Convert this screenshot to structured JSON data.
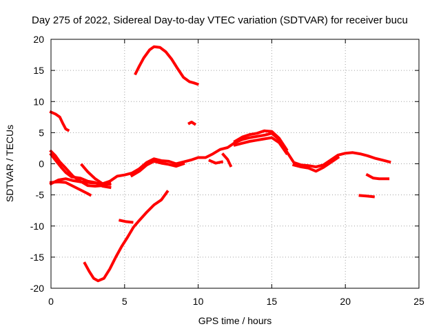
{
  "chart_data": {
    "type": "scatter",
    "title": "Day 275 of 2022, Sidereal Day-to-day VTEC variation (SDTVAR) for receiver bucu",
    "xlabel": "GPS time / hours",
    "ylabel": "SDTVAR / TECUs",
    "xlim": [
      0,
      25
    ],
    "ylim": [
      -20,
      20
    ],
    "xticks": [
      0,
      5,
      10,
      15,
      20,
      25
    ],
    "yticks": [
      -20,
      -15,
      -10,
      -5,
      0,
      5,
      10,
      15,
      20
    ],
    "grid": true,
    "legend": "none",
    "color": "#ff0000",
    "series": [
      {
        "name": "main-band",
        "points": [
          [
            0.0,
            -3.2
          ],
          [
            0.5,
            -2.6
          ],
          [
            1.0,
            -2.4
          ],
          [
            1.5,
            -2.7
          ],
          [
            2.0,
            -2.9
          ],
          [
            2.5,
            -3.0
          ],
          [
            3.0,
            -3.1
          ],
          [
            3.5,
            -3.2
          ],
          [
            4.0,
            -2.8
          ],
          [
            4.5,
            -2.0
          ],
          [
            5.0,
            -1.8
          ],
          [
            5.5,
            -1.5
          ],
          [
            6.0,
            -0.8
          ],
          [
            6.5,
            0.2
          ],
          [
            7.0,
            0.8
          ],
          [
            7.5,
            0.5
          ],
          [
            8.0,
            0.4
          ],
          [
            8.5,
            0.0
          ],
          [
            9.0,
            0.3
          ],
          [
            9.5,
            0.6
          ],
          [
            10.0,
            1.0
          ],
          [
            10.5,
            1.0
          ],
          [
            11.0,
            1.6
          ],
          [
            11.5,
            2.3
          ],
          [
            12.0,
            2.6
          ],
          [
            12.5,
            3.4
          ],
          [
            13.0,
            3.9
          ],
          [
            13.5,
            4.2
          ],
          [
            14.0,
            4.4
          ],
          [
            14.5,
            4.6
          ],
          [
            15.0,
            4.9
          ],
          [
            15.5,
            3.9
          ],
          [
            16.0,
            2.0
          ],
          [
            16.5,
            0.2
          ],
          [
            17.0,
            -0.2
          ],
          [
            17.5,
            -0.3
          ],
          [
            18.0,
            -0.5
          ],
          [
            18.5,
            -0.2
          ],
          [
            19.0,
            0.6
          ],
          [
            19.5,
            1.4
          ],
          [
            20.0,
            1.7
          ],
          [
            20.5,
            1.8
          ],
          [
            21.0,
            1.6
          ],
          [
            21.5,
            1.3
          ],
          [
            22.0,
            0.9
          ],
          [
            22.5,
            0.6
          ],
          [
            23.0,
            0.3
          ]
        ]
      },
      {
        "name": "band-upper",
        "points": [
          [
            12.5,
            3.6
          ],
          [
            13.0,
            4.3
          ],
          [
            13.5,
            4.7
          ],
          [
            14.0,
            4.9
          ],
          [
            14.5,
            5.3
          ],
          [
            15.0,
            5.2
          ],
          [
            15.5,
            4.1
          ],
          [
            16.0,
            2.3
          ]
        ]
      },
      {
        "name": "band-lower",
        "points": [
          [
            5.5,
            -1.9
          ],
          [
            6.0,
            -1.2
          ],
          [
            6.5,
            -0.2
          ],
          [
            7.0,
            0.4
          ],
          [
            7.5,
            0.1
          ],
          [
            8.0,
            -0.1
          ],
          [
            8.5,
            -0.4
          ],
          [
            9.0,
            0.0
          ]
        ]
      },
      {
        "name": "band-low-2",
        "points": [
          [
            12.5,
            3.0
          ],
          [
            13.0,
            3.3
          ],
          [
            13.5,
            3.6
          ],
          [
            14.0,
            3.8
          ],
          [
            14.5,
            4.0
          ],
          [
            15.0,
            4.2
          ],
          [
            15.5,
            3.4
          ],
          [
            16.0,
            1.7
          ]
        ]
      },
      {
        "name": "band-low-3",
        "points": [
          [
            16.5,
            -0.2
          ],
          [
            17.0,
            -0.5
          ],
          [
            17.5,
            -0.7
          ],
          [
            18.0,
            -1.2
          ],
          [
            18.5,
            -0.6
          ],
          [
            19.0,
            0.2
          ],
          [
            19.5,
            1.0
          ]
        ]
      },
      {
        "name": "branch-0",
        "points": [
          [
            0.0,
            2.0
          ],
          [
            0.3,
            1.3
          ],
          [
            0.6,
            0.3
          ],
          [
            1.0,
            -0.7
          ],
          [
            1.5,
            -2.0
          ],
          [
            2.0,
            -2.8
          ],
          [
            2.5,
            -3.5
          ],
          [
            3.0,
            -3.6
          ],
          [
            3.5,
            -3.5
          ],
          [
            4.0,
            -3.2
          ]
        ]
      },
      {
        "name": "branch-0b",
        "points": [
          [
            0.0,
            1.5
          ],
          [
            0.3,
            0.6
          ],
          [
            0.7,
            -0.6
          ],
          [
            1.0,
            -1.4
          ],
          [
            1.4,
            -2.1
          ],
          [
            2.0,
            -2.3
          ],
          [
            2.5,
            -2.8
          ],
          [
            3.0,
            -3.0
          ],
          [
            3.5,
            -3.6
          ],
          [
            4.0,
            -3.8
          ]
        ]
      },
      {
        "name": "branch-0c",
        "points": [
          [
            0.0,
            -3.0
          ],
          [
            0.5,
            -2.9
          ],
          [
            1.0,
            -3.0
          ],
          [
            1.5,
            -3.6
          ],
          [
            2.0,
            -4.2
          ],
          [
            2.5,
            -4.8
          ],
          [
            2.65,
            -5.0
          ]
        ]
      },
      {
        "name": "branch-2",
        "points": [
          [
            2.1,
            -0.2
          ],
          [
            2.5,
            -1.3
          ],
          [
            3.0,
            -2.4
          ],
          [
            3.5,
            -3.2
          ],
          [
            4.0,
            -3.3
          ]
        ]
      },
      {
        "name": "spur-12",
        "points": [
          [
            11.7,
            1.5
          ],
          [
            12.0,
            0.7
          ],
          [
            12.2,
            -0.3
          ]
        ]
      },
      {
        "name": "spur-11",
        "points": [
          [
            10.8,
            0.5
          ],
          [
            11.2,
            0.1
          ],
          [
            11.6,
            0.3
          ]
        ]
      },
      {
        "name": "top-arc",
        "points": [
          [
            5.75,
            14.5
          ],
          [
            6.0,
            15.7
          ],
          [
            6.3,
            17.0
          ],
          [
            6.7,
            18.3
          ],
          [
            7.0,
            18.8
          ],
          [
            7.4,
            18.7
          ],
          [
            7.8,
            18.0
          ],
          [
            8.2,
            16.8
          ],
          [
            8.6,
            15.3
          ],
          [
            9.0,
            13.9
          ],
          [
            9.4,
            13.2
          ],
          [
            9.7,
            13.0
          ],
          [
            9.95,
            12.8
          ]
        ]
      },
      {
        "name": "upper-left",
        "points": [
          [
            0.0,
            8.3
          ],
          [
            0.3,
            8.0
          ],
          [
            0.6,
            7.5
          ],
          [
            0.8,
            6.5
          ],
          [
            1.0,
            5.6
          ],
          [
            1.15,
            5.4
          ]
        ]
      },
      {
        "name": "dot-9.6",
        "points": [
          [
            9.4,
            6.5
          ],
          [
            9.55,
            6.7
          ],
          [
            9.75,
            6.4
          ]
        ]
      },
      {
        "name": "bottom-curve",
        "points": [
          [
            2.3,
            -16.0
          ],
          [
            2.6,
            -17.3
          ],
          [
            2.9,
            -18.4
          ],
          [
            3.2,
            -18.8
          ],
          [
            3.6,
            -18.4
          ],
          [
            4.0,
            -16.9
          ],
          [
            4.4,
            -15.0
          ],
          [
            4.8,
            -13.3
          ],
          [
            5.2,
            -11.8
          ],
          [
            5.6,
            -10.2
          ],
          [
            6.0,
            -9.1
          ],
          [
            6.5,
            -7.8
          ],
          [
            7.0,
            -6.6
          ],
          [
            7.5,
            -5.8
          ],
          [
            7.9,
            -4.5
          ]
        ]
      },
      {
        "name": "bottom-spur",
        "points": [
          [
            4.7,
            -9.1
          ],
          [
            5.1,
            -9.3
          ],
          [
            5.5,
            -9.4
          ]
        ]
      },
      {
        "name": "tail-21.8",
        "points": [
          [
            21.5,
            -1.8
          ],
          [
            21.9,
            -2.3
          ],
          [
            22.3,
            -2.4
          ],
          [
            22.9,
            -2.4
          ]
        ]
      },
      {
        "name": "tail-21.2",
        "points": [
          [
            21.0,
            -5.1
          ],
          [
            21.5,
            -5.2
          ],
          [
            21.9,
            -5.3
          ]
        ]
      }
    ]
  }
}
